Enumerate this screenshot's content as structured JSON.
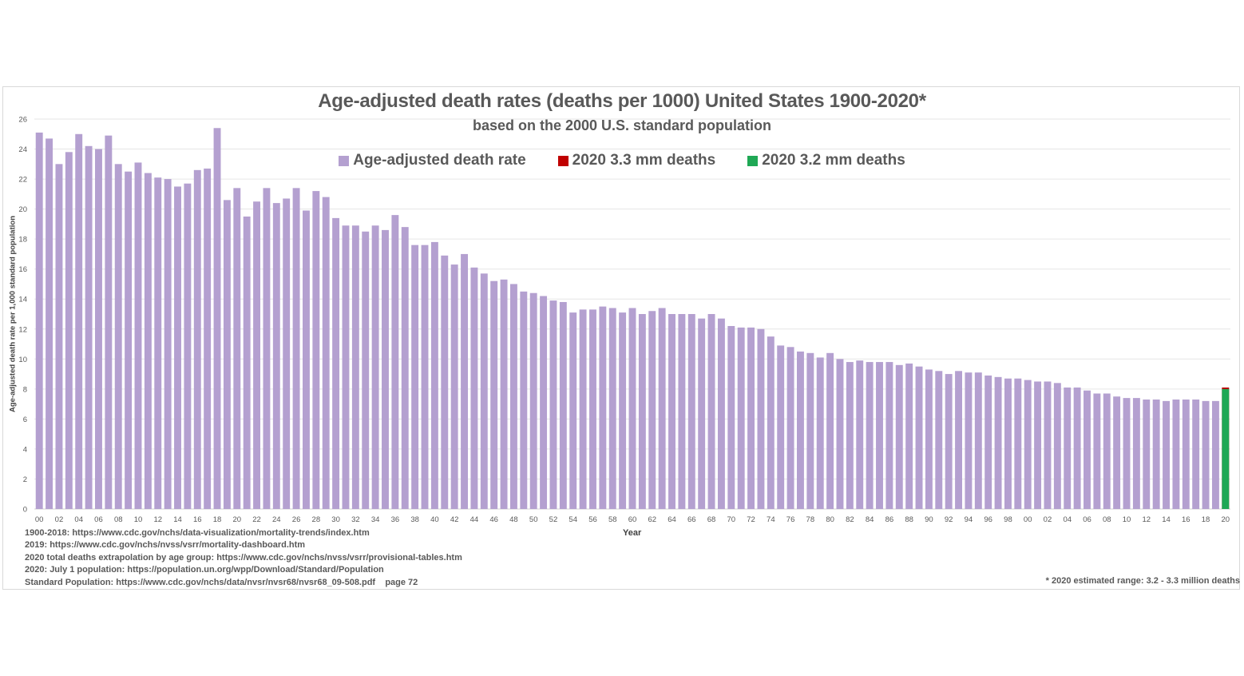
{
  "chart_data": {
    "type": "bar",
    "title": "Age-adjusted death rates (deaths per 1000) United States 1900-2020*",
    "subtitle": "based on the 2000 U.S. standard population",
    "xlabel": "Year",
    "ylabel": "Age-adjusted death rate per 1,000 standard population",
    "ylim": [
      0,
      26
    ],
    "yticks": [
      0,
      2,
      4,
      6,
      8,
      10,
      12,
      14,
      16,
      18,
      20,
      22,
      24,
      26
    ],
    "grid": true,
    "legend_position": "top-center",
    "legend": [
      {
        "label": "Age-adjusted death rate",
        "color": "#b4a0d0"
      },
      {
        "label": "2020 3.3 mm deaths",
        "color": "#c00000"
      },
      {
        "label": "2020 3.2 mm deaths",
        "color": "#1fa855"
      }
    ],
    "years_start": 1900,
    "years_end": 2020,
    "tick_label_every": 2,
    "series": [
      {
        "name": "Age-adjusted death rate",
        "color": "#b4a0d0",
        "x": [
          1900,
          1901,
          1902,
          1903,
          1904,
          1905,
          1906,
          1907,
          1908,
          1909,
          1910,
          1911,
          1912,
          1913,
          1914,
          1915,
          1916,
          1917,
          1918,
          1919,
          1920,
          1921,
          1922,
          1923,
          1924,
          1925,
          1926,
          1927,
          1928,
          1929,
          1930,
          1931,
          1932,
          1933,
          1934,
          1935,
          1936,
          1937,
          1938,
          1939,
          1940,
          1941,
          1942,
          1943,
          1944,
          1945,
          1946,
          1947,
          1948,
          1949,
          1950,
          1951,
          1952,
          1953,
          1954,
          1955,
          1956,
          1957,
          1958,
          1959,
          1960,
          1961,
          1962,
          1963,
          1964,
          1965,
          1966,
          1967,
          1968,
          1969,
          1970,
          1971,
          1972,
          1973,
          1974,
          1975,
          1976,
          1977,
          1978,
          1979,
          1980,
          1981,
          1982,
          1983,
          1984,
          1985,
          1986,
          1987,
          1988,
          1989,
          1990,
          1991,
          1992,
          1993,
          1994,
          1995,
          1996,
          1997,
          1998,
          1999,
          2000,
          2001,
          2002,
          2003,
          2004,
          2005,
          2006,
          2007,
          2008,
          2009,
          2010,
          2011,
          2012,
          2013,
          2014,
          2015,
          2016,
          2017,
          2018,
          2019
        ],
        "values": [
          25.1,
          24.7,
          23.0,
          23.8,
          25.0,
          24.2,
          24.0,
          24.9,
          23.0,
          22.5,
          23.1,
          22.4,
          22.1,
          22.0,
          21.5,
          21.7,
          22.6,
          22.7,
          25.4,
          20.6,
          21.4,
          19.5,
          20.5,
          21.4,
          20.4,
          20.7,
          21.4,
          19.9,
          21.2,
          20.8,
          19.4,
          18.9,
          18.9,
          18.5,
          18.9,
          18.6,
          19.6,
          18.8,
          17.6,
          17.6,
          17.8,
          16.9,
          16.3,
          17.0,
          16.1,
          15.7,
          15.2,
          15.3,
          15.0,
          14.5,
          14.4,
          14.2,
          13.9,
          13.8,
          13.1,
          13.3,
          13.3,
          13.5,
          13.4,
          13.1,
          13.4,
          13.0,
          13.2,
          13.4,
          13.0,
          13.0,
          13.0,
          12.7,
          13.0,
          12.7,
          12.2,
          12.1,
          12.1,
          12.0,
          11.5,
          10.9,
          10.8,
          10.5,
          10.4,
          10.1,
          10.4,
          10.0,
          9.8,
          9.9,
          9.8,
          9.8,
          9.8,
          9.6,
          9.7,
          9.5,
          9.3,
          9.2,
          9.0,
          9.2,
          9.1,
          9.1,
          8.9,
          8.8,
          8.7,
          8.7,
          8.6,
          8.5,
          8.5,
          8.4,
          8.1,
          8.1,
          7.9,
          7.7,
          7.7,
          7.5,
          7.4,
          7.4,
          7.3,
          7.3,
          7.2,
          7.3,
          7.3,
          7.3,
          7.2,
          7.2
        ]
      },
      {
        "name": "2020 3.3 mm deaths",
        "color": "#c00000",
        "x": [
          2020
        ],
        "values": [
          8.1
        ]
      },
      {
        "name": "2020 3.2 mm deaths",
        "color": "#1fa855",
        "x": [
          2020
        ],
        "values": [
          8.0
        ]
      }
    ]
  },
  "sources": [
    "1900-2018: https://www.cdc.gov/nchs/data-visualization/mortality-trends/index.htm",
    "2019: https://www.cdc.gov/nchs/nvss/vsrr/mortality-dashboard.htm",
    "2020 total deaths extrapolation by age group: https://www.cdc.gov/nchs/nvss/vsrr/provisional-tables.htm",
    "2020: July 1 population: https://population.un.org/wpp/Download/Standard/Population",
    "Standard Population: https://www.cdc.gov/nchs/data/nvsr/nvsr68/nvsr68_09-508.pdf    page 72"
  ],
  "footnote": "* 2020 estimated range: 3.2 - 3.3 million deaths"
}
